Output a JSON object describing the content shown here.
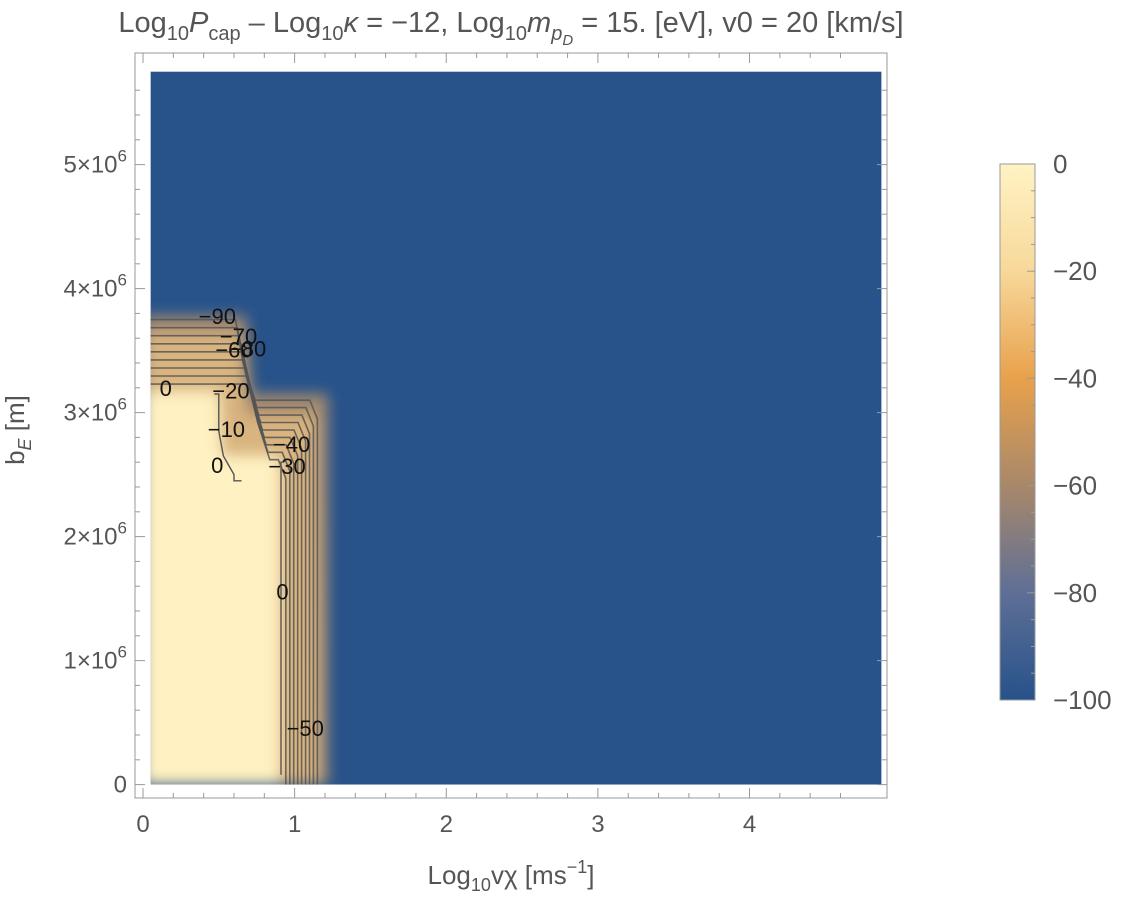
{
  "chart_data": {
    "type": "heatmap",
    "title": {
      "t1": "Log",
      "t1sub": "10",
      "t2": "P",
      "t2sub": "cap",
      "t3": " – Log",
      "t3sub": "10",
      "t4": "κ",
      "t5": " = −12, Log",
      "t5sub": "10",
      "t6": "m",
      "t6sub": "p",
      "t6subsub": "D",
      "t7": " = 15. [eV], v0 = 20 [km/s]"
    },
    "xlabel": {
      "a": "Log",
      "sub": "10",
      "b": "vχ [ms",
      "sup": "−1",
      "c": "]"
    },
    "ylabel": {
      "a": "b",
      "sub": "E",
      "b": " [m]"
    },
    "xlim": [
      0,
      4.9
    ],
    "ylim": [
      -100000,
      5900000
    ],
    "xticks": [
      0,
      1,
      2,
      3,
      4
    ],
    "xtick_labels": [
      "0",
      "1",
      "2",
      "3",
      "4"
    ],
    "yticks": [
      0,
      1000000,
      2000000,
      3000000,
      4000000,
      5000000
    ],
    "ytick_labels": [
      {
        "m": "0",
        "e": ""
      },
      {
        "m": "1×10",
        "e": "6"
      },
      {
        "m": "2×10",
        "e": "6"
      },
      {
        "m": "3×10",
        "e": "6"
      },
      {
        "m": "4×10",
        "e": "6"
      },
      {
        "m": "5×10",
        "e": "6"
      }
    ],
    "data_region": {
      "x": [
        0.05,
        4.87
      ],
      "y": [
        0,
        5750000
      ]
    },
    "colorbar": {
      "range": [
        -100,
        0
      ],
      "ticks": [
        0,
        -20,
        -40,
        -60,
        -80,
        -100
      ],
      "tick_labels": [
        "0",
        "−20",
        "−40",
        "−60",
        "−80",
        "−100"
      ],
      "stops": [
        {
          "value": 0,
          "color": "#fff3c4"
        },
        {
          "value": -20,
          "color": "#f7d89a"
        },
        {
          "value": -40,
          "color": "#e8a14c"
        },
        {
          "value": -60,
          "color": "#a8886a"
        },
        {
          "value": -80,
          "color": "#5e6f96"
        },
        {
          "value": -100,
          "color": "#27528a"
        }
      ]
    },
    "colors": {
      "low": "#27528a",
      "high": "#fff1c1",
      "contour": "#555555",
      "frame": "#999999",
      "text": "#555555"
    },
    "contour_labels": [
      {
        "text": "−90",
        "x": 0.49,
        "y": 3760000
      },
      {
        "text": "−70",
        "x": 0.63,
        "y": 3600000
      },
      {
        "text": "−80",
        "x": 0.69,
        "y": 3500000
      },
      {
        "text": "−60",
        "x": 0.6,
        "y": 3490000
      },
      {
        "text": "0",
        "x": 0.15,
        "y": 3180000
      },
      {
        "text": "−20",
        "x": 0.58,
        "y": 3160000
      },
      {
        "text": "−10",
        "x": 0.55,
        "y": 2850000
      },
      {
        "text": "−40",
        "x": 0.98,
        "y": 2730000
      },
      {
        "text": "0",
        "x": 0.49,
        "y": 2560000
      },
      {
        "text": "−30",
        "x": 0.95,
        "y": 2550000
      },
      {
        "text": "0",
        "x": 0.92,
        "y": 1540000
      },
      {
        "text": "−50",
        "x": 1.07,
        "y": 440000
      }
    ]
  }
}
